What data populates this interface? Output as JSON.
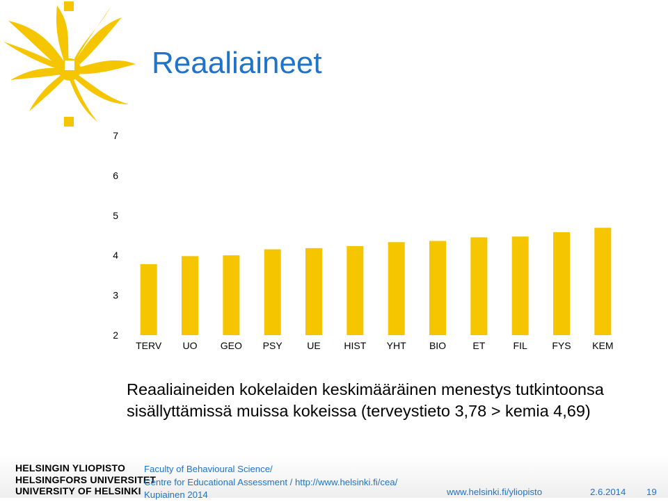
{
  "slide": {
    "title": "Reaaliaineet",
    "caption_lines": [
      "Reaaliaineiden kokelaiden keskimääräinen menestys tutkintoonsa",
      "sisällyttämissä muissa kokeissa (terveystieto 3,78 > kemia 4,69)"
    ]
  },
  "chart_data": {
    "type": "bar",
    "categories": [
      "TERV",
      "UO",
      "GEO",
      "PSY",
      "UE",
      "HIST",
      "YHT",
      "BIO",
      "ET",
      "FIL",
      "FYS",
      "KEM"
    ],
    "values": [
      3.78,
      3.98,
      4.0,
      4.15,
      4.18,
      4.23,
      4.33,
      4.36,
      4.45,
      4.47,
      4.58,
      4.69
    ],
    "ylim": [
      2,
      7
    ],
    "yticks": [
      2,
      3,
      4,
      5,
      6,
      7
    ],
    "title": "",
    "xlabel": "",
    "ylabel": "",
    "grid": false,
    "bar_color": "#f5c500"
  },
  "footer": {
    "university_names": [
      "HELSINGIN YLIOPISTO",
      "HELSINGFORS UNIVERSITET",
      "UNIVERSITY OF HELSINKI"
    ],
    "info_lines": [
      "Faculty of Behavioural Science/",
      "Centre for Educational Assessment /  http://www.helsinki.fi/cea/",
      "Kupiainen 2014"
    ],
    "website": "www.helsinki.fi/yliopisto",
    "date": "2.6.2014",
    "page_number": "19"
  },
  "colors": {
    "accent_blue": "#1f73c9",
    "logo_yellow": "#f5c500",
    "footer_band": "#eeeeee"
  }
}
